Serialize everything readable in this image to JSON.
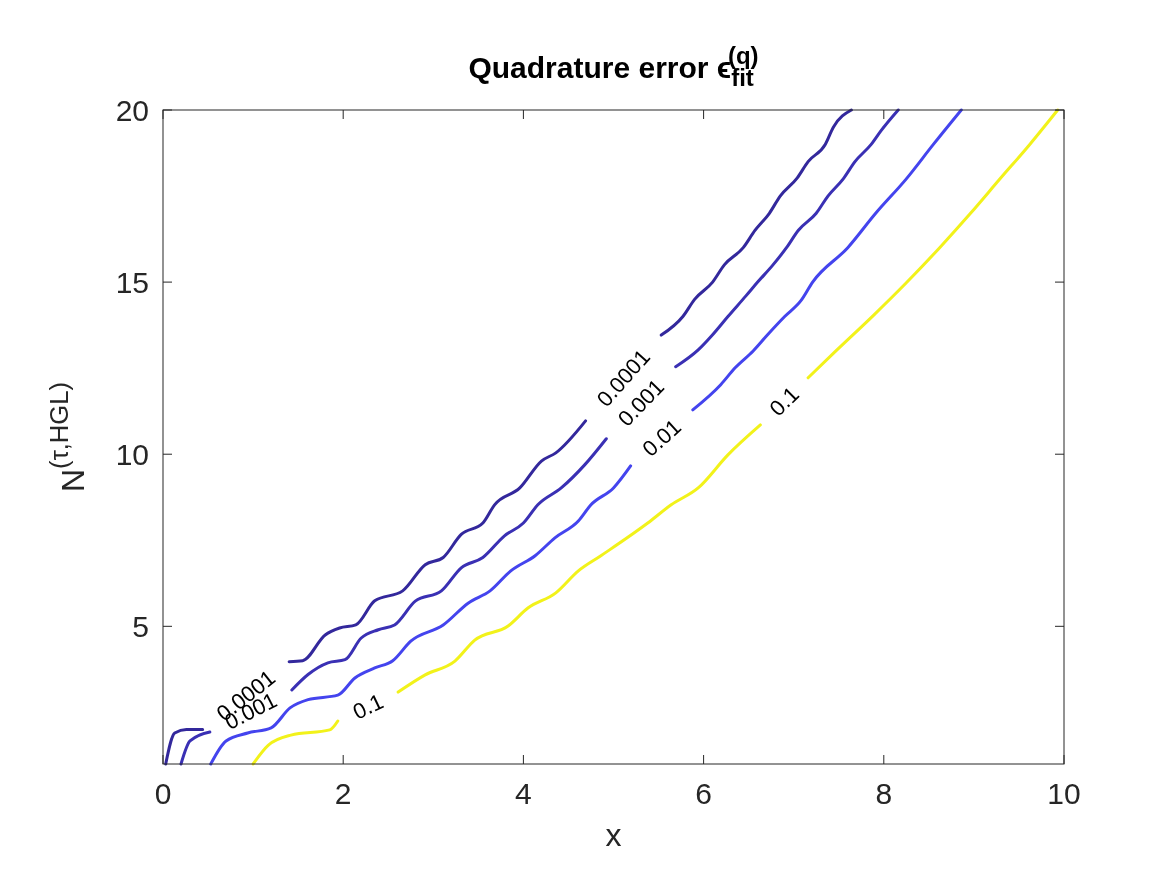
{
  "chart_data": {
    "type": "line",
    "title": "Quadrature error ϵ$_{fit}$$^{(q)}$",
    "xlabel": "x",
    "ylabel": "N$^{(τ,HGL)}$",
    "xlim": [
      0,
      10
    ],
    "xticks": [
      0,
      2,
      4,
      6,
      8,
      10
    ],
    "ylim": [
      1,
      20
    ],
    "yticks": [
      5,
      10,
      15,
      20
    ],
    "grid": false,
    "series": [
      {
        "name": "0.0001",
        "color": "#33289c",
        "x": [
          0.03,
          0.13,
          0.26,
          0.44,
          0.9,
          1.4,
          1.55,
          1.8,
          1.96,
          2.14,
          2.35,
          2.66,
          2.91,
          3.11,
          3.31,
          3.55,
          3.68,
          3.96,
          4.2,
          4.36,
          4.69,
          5.1,
          5.53,
          5.77,
          5.9,
          6.1,
          6.23,
          6.44,
          6.57,
          6.73,
          6.85,
          7.04,
          7.16,
          7.35,
          7.44,
          7.64
        ],
        "values": [
          1,
          1.9,
          2.0,
          2.0,
          null,
          3.97,
          4.0,
          4.75,
          4.95,
          5.04,
          5.74,
          6.03,
          6.79,
          7.0,
          7.67,
          8.0,
          8.53,
          9.02,
          9.8,
          10.04,
          10.97,
          null,
          13.46,
          14.0,
          14.5,
          15.0,
          15.5,
          16.0,
          16.5,
          17.0,
          17.5,
          18.03,
          18.5,
          19.0,
          19.5,
          20
        ]
      },
      {
        "name": "0.001",
        "color": "#3a30b4",
        "x": [
          0.2,
          0.3,
          0.52,
          0.9,
          1.43,
          1.61,
          1.83,
          2.02,
          2.2,
          2.39,
          2.57,
          2.8,
          3.09,
          3.31,
          3.55,
          3.79,
          4.0,
          4.16,
          4.42,
          4.68,
          4.92,
          5.3,
          5.69,
          5.94,
          6.1,
          6.27,
          6.47,
          6.6,
          6.77,
          6.92,
          7.05,
          7.25,
          7.38,
          7.55,
          7.68,
          7.86,
          7.97,
          8.16
        ],
        "values": [
          1,
          1.67,
          1.93,
          null,
          3.15,
          3.6,
          3.94,
          4.03,
          4.66,
          4.9,
          5.04,
          5.73,
          6.03,
          6.7,
          7.0,
          7.63,
          8.0,
          8.53,
          9.02,
          9.69,
          10.45,
          null,
          12.54,
          13.03,
          13.47,
          14.0,
          14.6,
          15.0,
          15.5,
          16.0,
          16.5,
          17.0,
          17.5,
          18.0,
          18.5,
          19.0,
          19.4,
          20
        ]
      },
      {
        "name": "0.01",
        "color": "#4444ee",
        "x": [
          0.53,
          0.7,
          0.94,
          1.2,
          1.41,
          1.61,
          1.94,
          2.13,
          2.35,
          2.55,
          2.75,
          3.11,
          3.39,
          3.63,
          3.86,
          4.13,
          4.35,
          4.61,
          4.75,
          5.0,
          5.19,
          5.5,
          5.88,
          6.19,
          6.35,
          6.55,
          6.71,
          6.9,
          7.08,
          7.21,
          7.6,
          7.91,
          8.25,
          8.55,
          8.86
        ],
        "values": [
          1,
          1.67,
          1.9,
          2.05,
          2.63,
          2.87,
          3.0,
          3.5,
          3.79,
          4.0,
          4.57,
          5.04,
          5.68,
          6.03,
          6.61,
          7.05,
          7.57,
          8.06,
          8.53,
          9.02,
          9.66,
          null,
          11.29,
          12.02,
          12.51,
          13.0,
          13.47,
          14.0,
          14.46,
          15.0,
          16.0,
          17.0,
          18.0,
          19.0,
          20
        ]
      },
      {
        "name": "0.1",
        "color": "#f2f21a",
        "x": [
          1.0,
          1.17,
          1.42,
          1.85,
          1.94,
          2.3,
          2.61,
          2.91,
          3.24,
          3.46,
          3.83,
          4.05,
          4.36,
          4.61,
          4.86,
          5.38,
          5.64,
          5.94,
          6.27,
          6.63,
          6.9,
          7.16,
          7.46,
          7.88,
          8.25,
          8.62,
          8.97,
          9.29,
          9.62,
          9.93
        ],
        "values": [
          1,
          1.55,
          1.84,
          1.99,
          2.25,
          null,
          3.09,
          3.59,
          3.99,
          4.6,
          5.01,
          5.53,
          5.97,
          6.61,
          7.05,
          8.0,
          8.53,
          9.02,
          9.98,
          10.85,
          null,
          12.22,
          12.98,
          14.02,
          14.98,
          16.0,
          17.02,
          18.0,
          19.0,
          20
        ]
      }
    ]
  }
}
